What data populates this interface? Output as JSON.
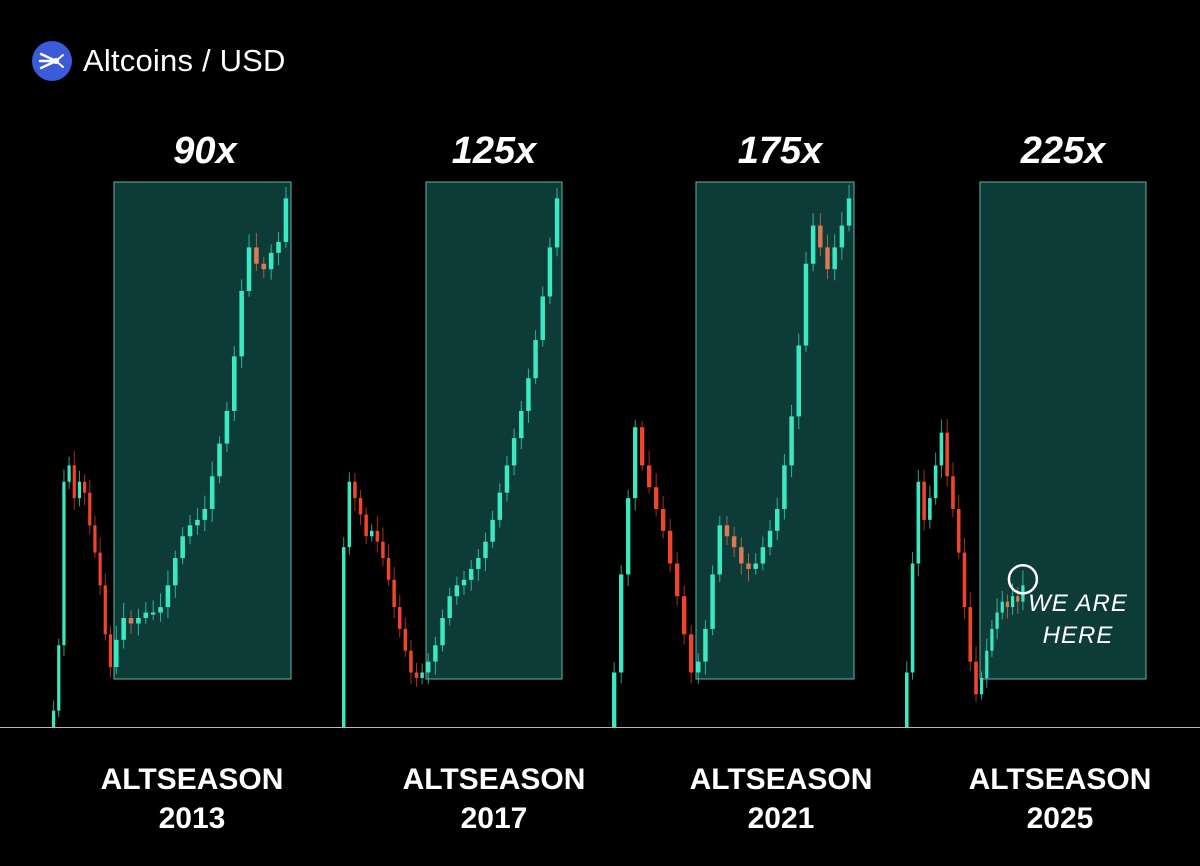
{
  "header": {
    "title": "Altcoins / USD",
    "logo_icon": "crypto-aggregate-icon",
    "logo_color": "#3b5bdb"
  },
  "colors": {
    "background": "#000000",
    "bull": "#3ae8c2",
    "bear": "#f0452a",
    "bear_inside": "#d97a55",
    "box_fill": "#0d3b38",
    "box_stroke": "#5fb3a3",
    "baseline": "#b8b8b8"
  },
  "chart_data": {
    "type": "candlestick",
    "title": "Altcoins / USD",
    "xlabel": "",
    "ylabel": "",
    "grid": false,
    "cycles": [
      {
        "multiplier": "90x",
        "label_line1": "ALTSEASON",
        "label_line2": "2013",
        "pre_box": [
          [
            0.0,
            0.03
          ],
          [
            0.03,
            0.15
          ],
          [
            0.15,
            0.45
          ],
          [
            0.45,
            0.48
          ],
          [
            0.48,
            0.42
          ],
          [
            0.42,
            0.45
          ],
          [
            0.45,
            0.43
          ],
          [
            0.43,
            0.37
          ],
          [
            0.37,
            0.32
          ],
          [
            0.32,
            0.26
          ],
          [
            0.26,
            0.17
          ],
          [
            0.17,
            0.11
          ]
        ],
        "in_box": [
          [
            0.11,
            0.16
          ],
          [
            0.16,
            0.2
          ],
          [
            0.2,
            0.19
          ],
          [
            0.19,
            0.2
          ],
          [
            0.2,
            0.21
          ],
          [
            0.21,
            0.21
          ],
          [
            0.21,
            0.22
          ],
          [
            0.22,
            0.26
          ],
          [
            0.26,
            0.31
          ],
          [
            0.31,
            0.35
          ],
          [
            0.35,
            0.37
          ],
          [
            0.37,
            0.38
          ],
          [
            0.38,
            0.4
          ],
          [
            0.4,
            0.46
          ],
          [
            0.46,
            0.52
          ],
          [
            0.52,
            0.58
          ],
          [
            0.58,
            0.68
          ],
          [
            0.68,
            0.8
          ],
          [
            0.8,
            0.88
          ],
          [
            0.88,
            0.85
          ],
          [
            0.85,
            0.84
          ],
          [
            0.84,
            0.87
          ],
          [
            0.87,
            0.89
          ],
          [
            0.89,
            0.97
          ]
        ]
      },
      {
        "multiplier": "125x",
        "label_line1": "ALTSEASON",
        "label_line2": "2017",
        "pre_box": [
          [
            0.0,
            0.33
          ],
          [
            0.33,
            0.45
          ],
          [
            0.45,
            0.42
          ],
          [
            0.42,
            0.39
          ],
          [
            0.39,
            0.35
          ],
          [
            0.35,
            0.36
          ],
          [
            0.36,
            0.34
          ],
          [
            0.34,
            0.31
          ],
          [
            0.31,
            0.27
          ],
          [
            0.27,
            0.22
          ],
          [
            0.22,
            0.18
          ],
          [
            0.18,
            0.14
          ],
          [
            0.14,
            0.1
          ],
          [
            0.1,
            0.09
          ],
          [
            0.09,
            0.1
          ]
        ],
        "in_box": [
          [
            0.1,
            0.12
          ],
          [
            0.12,
            0.15
          ],
          [
            0.15,
            0.2
          ],
          [
            0.2,
            0.24
          ],
          [
            0.24,
            0.26
          ],
          [
            0.26,
            0.27
          ],
          [
            0.27,
            0.29
          ],
          [
            0.29,
            0.31
          ],
          [
            0.31,
            0.34
          ],
          [
            0.34,
            0.38
          ],
          [
            0.38,
            0.43
          ],
          [
            0.43,
            0.48
          ],
          [
            0.48,
            0.53
          ],
          [
            0.53,
            0.58
          ],
          [
            0.58,
            0.64
          ],
          [
            0.64,
            0.71
          ],
          [
            0.71,
            0.79
          ],
          [
            0.79,
            0.88
          ],
          [
            0.88,
            0.97
          ]
        ]
      },
      {
        "multiplier": "175x",
        "label_line1": "ALTSEASON",
        "label_line2": "2021",
        "pre_box": [
          [
            0.0,
            0.1
          ],
          [
            0.1,
            0.28
          ],
          [
            0.28,
            0.42
          ],
          [
            0.42,
            0.55
          ],
          [
            0.55,
            0.48
          ],
          [
            0.48,
            0.44
          ],
          [
            0.44,
            0.4
          ],
          [
            0.4,
            0.36
          ],
          [
            0.36,
            0.3
          ],
          [
            0.3,
            0.24
          ],
          [
            0.24,
            0.17
          ],
          [
            0.17,
            0.1
          ]
        ],
        "in_box": [
          [
            0.1,
            0.12
          ],
          [
            0.12,
            0.18
          ],
          [
            0.18,
            0.28
          ],
          [
            0.28,
            0.37
          ],
          [
            0.37,
            0.35
          ],
          [
            0.35,
            0.33
          ],
          [
            0.33,
            0.3
          ],
          [
            0.3,
            0.29
          ],
          [
            0.29,
            0.3
          ],
          [
            0.3,
            0.33
          ],
          [
            0.33,
            0.36
          ],
          [
            0.36,
            0.4
          ],
          [
            0.4,
            0.48
          ],
          [
            0.48,
            0.57
          ],
          [
            0.57,
            0.7
          ],
          [
            0.7,
            0.85
          ],
          [
            0.85,
            0.92
          ],
          [
            0.92,
            0.88
          ],
          [
            0.88,
            0.84
          ],
          [
            0.84,
            0.88
          ],
          [
            0.88,
            0.92
          ],
          [
            0.92,
            0.97
          ]
        ]
      },
      {
        "multiplier": "225x",
        "label_line1": "ALTSEASON",
        "label_line2": "2025",
        "pre_box": [
          [
            0.0,
            0.1
          ],
          [
            0.1,
            0.3
          ],
          [
            0.3,
            0.45
          ],
          [
            0.45,
            0.38
          ],
          [
            0.38,
            0.42
          ],
          [
            0.42,
            0.48
          ],
          [
            0.48,
            0.54
          ],
          [
            0.54,
            0.46
          ],
          [
            0.46,
            0.4
          ],
          [
            0.4,
            0.32
          ],
          [
            0.32,
            0.22
          ],
          [
            0.22,
            0.12
          ],
          [
            0.12,
            0.06
          ]
        ],
        "in_box": [
          [
            0.06,
            0.09
          ],
          [
            0.09,
            0.14
          ],
          [
            0.14,
            0.18
          ],
          [
            0.18,
            0.21
          ],
          [
            0.21,
            0.23
          ],
          [
            0.23,
            0.22
          ],
          [
            0.22,
            0.24
          ],
          [
            0.24,
            0.23
          ],
          [
            0.23,
            0.26
          ]
        ],
        "marker": "circle",
        "annotation_line1": "WE ARE",
        "annotation_line2": "HERE"
      }
    ]
  }
}
